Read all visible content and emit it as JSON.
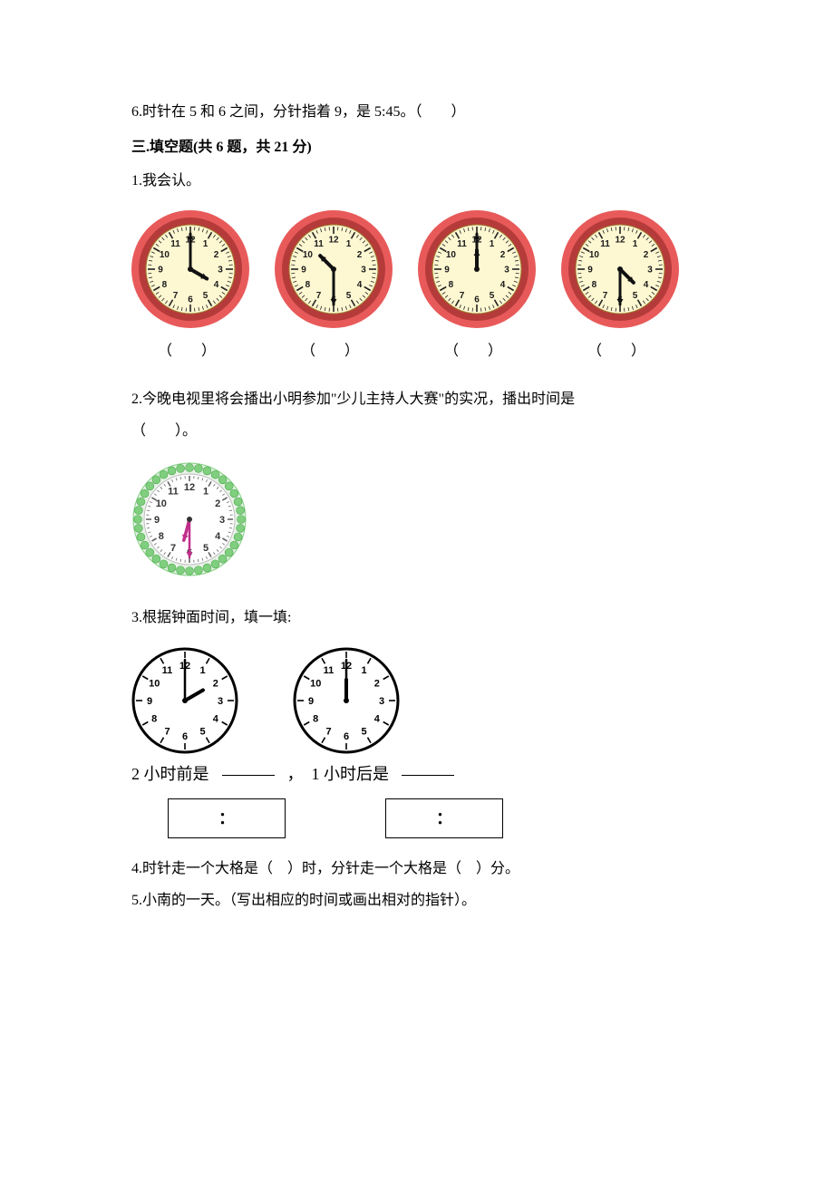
{
  "q6": {
    "text": "6.时针在 5 和 6 之间，分针指着 9，是 5:45。（　　）"
  },
  "section3": {
    "header": "三.填空题(共 6 题，共 21 分)"
  },
  "s3q1": {
    "text": "1.我会认。",
    "paren": "（　）",
    "clock": {
      "diameter": 130,
      "outer_ring_color": "#e85a5a",
      "inner_ring_color": "#b53b3b",
      "face_color": "#fdf7d2",
      "tick_color": "#222222",
      "number_color": "#1a1a1a",
      "number_fontsize": 10,
      "hand_color": "#111111",
      "center_color": "#111111"
    },
    "clocks": [
      {
        "hour": 4,
        "minute": 0
      },
      {
        "hour": 10,
        "minute": 30
      },
      {
        "hour": 12,
        "minute": 0
      },
      {
        "hour": 4,
        "minute": 30
      }
    ]
  },
  "s3q2": {
    "text_a": "2.今晚电视里将会播出小明参加\"少儿主持人大赛\"的实况，播出时间是",
    "text_b": "（　　）。",
    "clock": {
      "diameter": 128,
      "ring_bead_color": "#7fcf7f",
      "ring_bg": "#e8f3e8",
      "face_color": "#ffffff",
      "number_color": "#333333",
      "number_fontsize": 11,
      "hand_color": "#c02f8a",
      "center_color": "#333333"
    },
    "time": {
      "hour": 6,
      "minute": 30
    }
  },
  "s3q3": {
    "text": "3.根据钟面时间，填一填:",
    "clock": {
      "diameter": 118,
      "ring_color": "#000000",
      "face_color": "#ffffff",
      "number_color": "#000000",
      "number_fontsize": 11,
      "hand_color": "#000000"
    },
    "clocks": [
      {
        "hour": 2,
        "minute": 0,
        "caption_prefix": "2 小时前是"
      },
      {
        "hour": 12,
        "minute": 0,
        "caption_prefix": "，　1 小时后是"
      }
    ],
    "box_label": "："
  },
  "s3q4": {
    "text": "4.时针走一个大格是（　）时，分针走一个大格是（　）分。"
  },
  "s3q5": {
    "text": "5.小南的一天。（写出相应的时间或画出相对的指针）。"
  }
}
